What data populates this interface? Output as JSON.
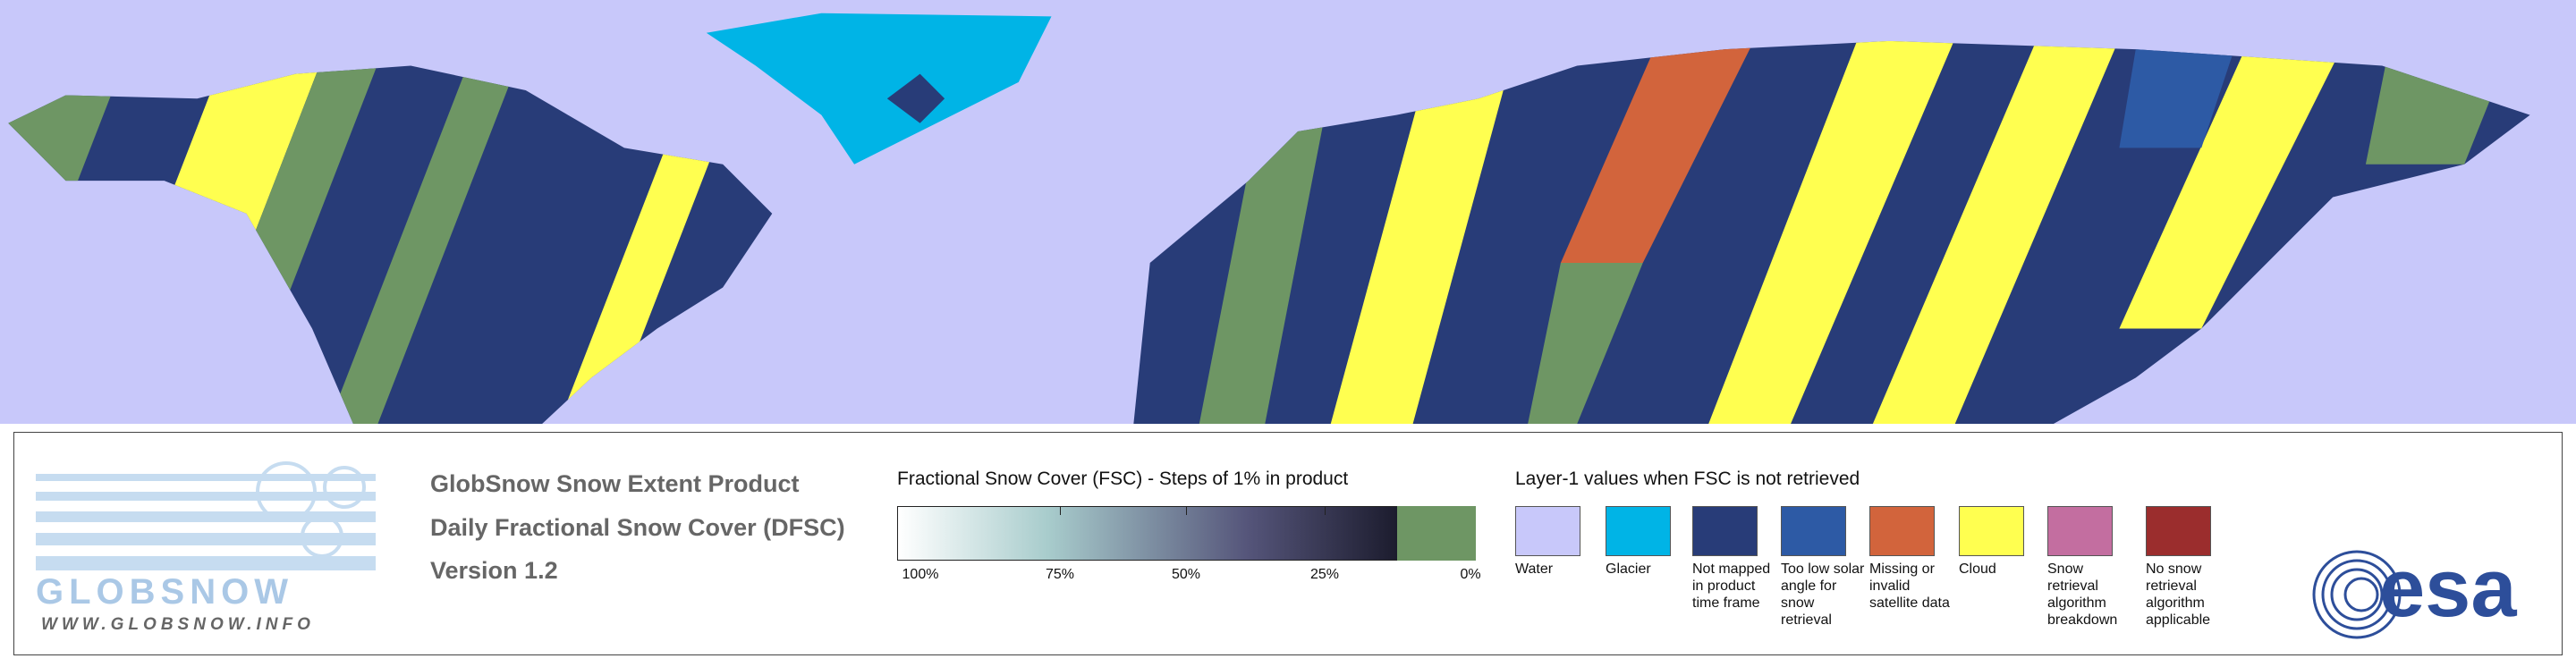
{
  "logo": {
    "name": "GLOBSNOW",
    "url": "WWW.GLOBSNOW.INFO"
  },
  "product": {
    "lines": [
      "GlobSnow Snow Extent Product",
      "Daily Fractional Snow Cover (DFSC)",
      "Version 1.2"
    ]
  },
  "fsc_scale": {
    "title": "Fractional Snow Cover (FSC) - Steps of 1% in product",
    "labels": [
      "100%",
      "75%",
      "50%",
      "25%",
      "0%"
    ],
    "no_snow_color": "#6e9664"
  },
  "layer1": {
    "title": "Layer-1 values when FSC is not retrieved",
    "items": [
      {
        "label": "Water",
        "color": "#c8c8fa"
      },
      {
        "label": "Glacier",
        "color": "#00b4e6"
      },
      {
        "label": "Not mapped in product time frame",
        "color": "#283c78"
      },
      {
        "label": "Too low solar angle for snow retrieval",
        "color": "#2d5aa5"
      },
      {
        "label": "Missing or invalid satellite data",
        "color": "#d2643c"
      },
      {
        "label": "Cloud",
        "color": "#ffff50"
      },
      {
        "label": "Snow retrieval algorithm breakdown",
        "color": "#c36ea0"
      },
      {
        "label": "No snow retrieval algorithm applicable",
        "color": "#9b2d2d"
      }
    ]
  },
  "esa": "esa"
}
